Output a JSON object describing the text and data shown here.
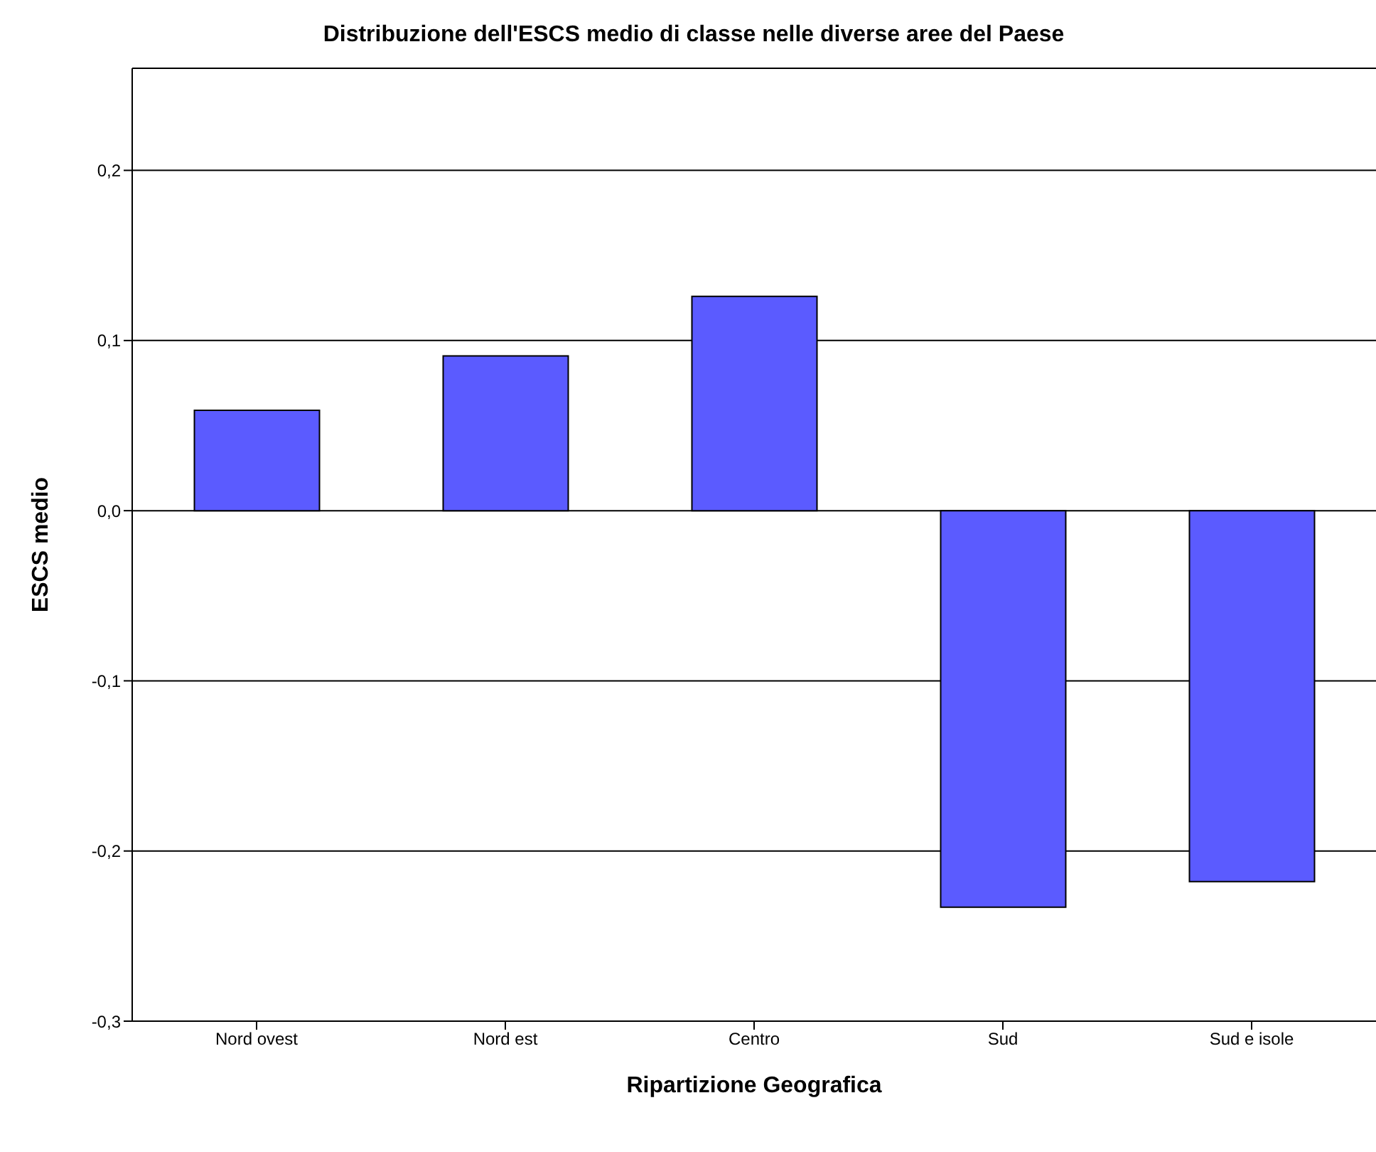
{
  "chart_data": {
    "type": "bar",
    "title": "Distribuzione dell'ESCS medio di classe nelle diverse aree del Paese",
    "xlabel": "Ripartizione Geografica",
    "ylabel": "ESCS medio",
    "categories": [
      "Nord ovest",
      "Nord est",
      "Centro",
      "Sud",
      "Sud e isole"
    ],
    "values": [
      0.059,
      0.091,
      0.126,
      -0.233,
      -0.218
    ],
    "color": "#5b5bff",
    "ylim": [
      -0.3,
      0.26
    ],
    "yticks": [
      {
        "value": -0.3,
        "label": "-0,3"
      },
      {
        "value": -0.2,
        "label": "-0,2"
      },
      {
        "value": -0.1,
        "label": "-0,1"
      },
      {
        "value": 0,
        "label": "0,0"
      },
      {
        "value": 0.1,
        "label": "0,1"
      },
      {
        "value": 0.2,
        "label": "0,2"
      }
    ],
    "grid": "y",
    "legend": false
  }
}
